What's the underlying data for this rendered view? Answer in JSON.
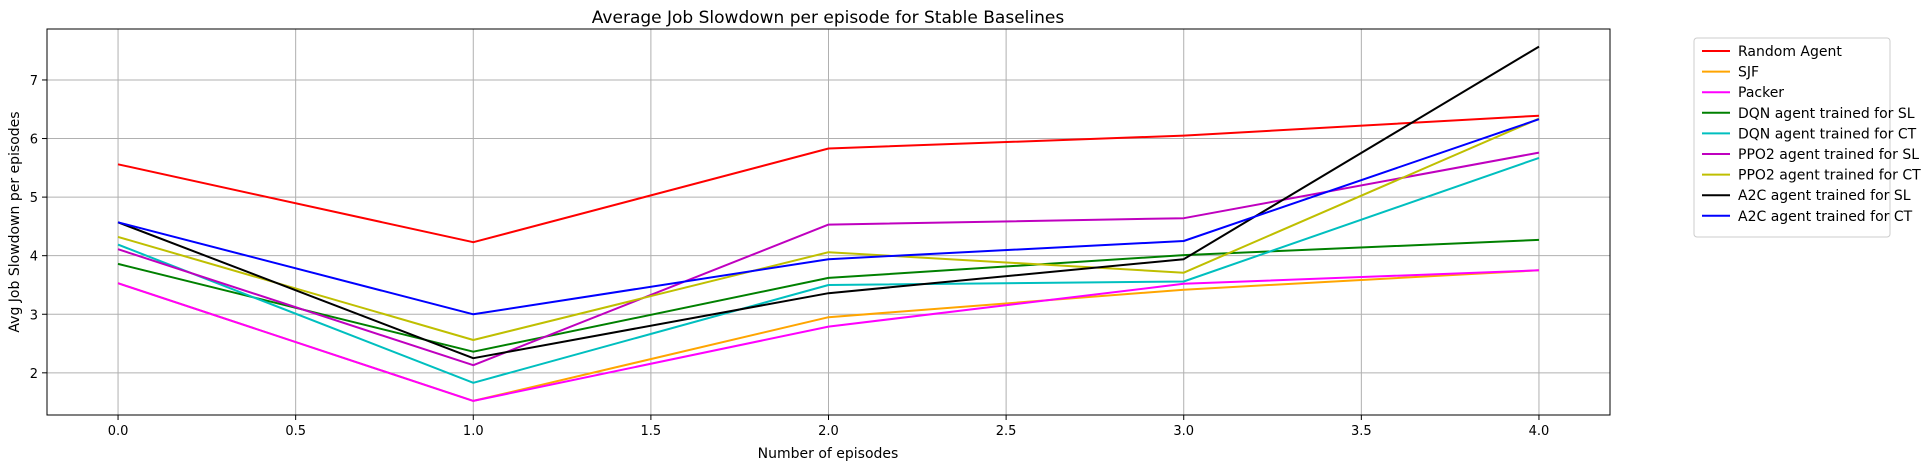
{
  "chart_data": {
    "type": "line",
    "title": "Average Job Slowdown per episode for Stable Baselines",
    "xlabel": "Number of episodes",
    "ylabel": "Avg Job Slowdown per episodes",
    "x": [
      0.0,
      1.0,
      2.0,
      3.0,
      4.0
    ],
    "xlim": [
      -0.2,
      4.2
    ],
    "ylim": [
      1.28,
      7.87
    ],
    "xticks": [
      "0.0",
      "0.5",
      "1.0",
      "1.5",
      "2.0",
      "2.5",
      "3.0",
      "3.5",
      "4.0"
    ],
    "yticks": [
      "2",
      "3",
      "4",
      "5",
      "6",
      "7"
    ],
    "grid": true,
    "legend_position": "outside-top-right",
    "series": [
      {
        "name": "Random Agent",
        "color": "#ff0000",
        "values": [
          5.56,
          4.23,
          5.83,
          6.05,
          6.39
        ]
      },
      {
        "name": "SJF",
        "color": "#ffa500",
        "values": [
          3.53,
          1.52,
          2.95,
          3.42,
          3.75
        ]
      },
      {
        "name": "Packer",
        "color": "#ff00ff",
        "values": [
          3.53,
          1.52,
          2.79,
          3.52,
          3.75
        ]
      },
      {
        "name": "DQN agent trained for SL",
        "color": "#008000",
        "values": [
          3.86,
          2.36,
          3.62,
          4.01,
          4.27
        ]
      },
      {
        "name": "DQN agent trained for CT",
        "color": "#00bfbf",
        "values": [
          4.19,
          1.83,
          3.5,
          3.56,
          5.67
        ]
      },
      {
        "name": "PPO2 agent trained for SL",
        "color": "#bf00bf",
        "values": [
          4.11,
          2.13,
          4.53,
          4.64,
          5.76
        ]
      },
      {
        "name": "PPO2 agent trained for CT",
        "color": "#bfbf00",
        "values": [
          4.32,
          2.56,
          4.06,
          3.71,
          6.34
        ]
      },
      {
        "name": "A2C agent trained for SL",
        "color": "#000000",
        "values": [
          4.57,
          2.25,
          3.36,
          3.94,
          7.57
        ]
      },
      {
        "name": "A2C agent trained for CT",
        "color": "#0000ff",
        "values": [
          4.57,
          3.0,
          3.94,
          4.25,
          6.33
        ]
      }
    ]
  }
}
